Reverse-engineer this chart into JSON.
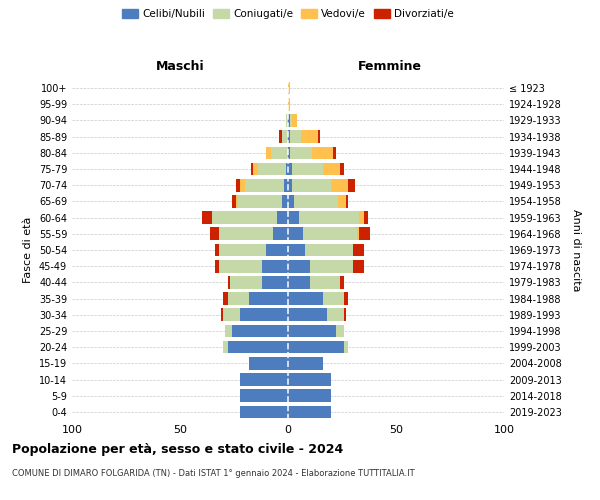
{
  "age_groups": [
    "0-4",
    "5-9",
    "10-14",
    "15-19",
    "20-24",
    "25-29",
    "30-34",
    "35-39",
    "40-44",
    "45-49",
    "50-54",
    "55-59",
    "60-64",
    "65-69",
    "70-74",
    "75-79",
    "80-84",
    "85-89",
    "90-94",
    "95-99",
    "100+"
  ],
  "birth_years": [
    "2019-2023",
    "2014-2018",
    "2009-2013",
    "2004-2008",
    "1999-2003",
    "1994-1998",
    "1989-1993",
    "1984-1988",
    "1979-1983",
    "1974-1978",
    "1969-1973",
    "1964-1968",
    "1959-1963",
    "1954-1958",
    "1949-1953",
    "1944-1948",
    "1939-1943",
    "1934-1938",
    "1929-1933",
    "1924-1928",
    "≤ 1923"
  ],
  "colors": {
    "celibi": "#4d7dbe",
    "coniugati": "#c5d9a8",
    "vedovi": "#ffc04d",
    "divorziati": "#cc2200"
  },
  "males": {
    "celibi": [
      22,
      22,
      22,
      18,
      28,
      26,
      22,
      18,
      12,
      12,
      10,
      7,
      5,
      3,
      2,
      1,
      0,
      0,
      0,
      0,
      0
    ],
    "coniugati": [
      0,
      0,
      0,
      0,
      2,
      3,
      8,
      10,
      15,
      20,
      22,
      25,
      30,
      20,
      18,
      13,
      8,
      3,
      1,
      0,
      0
    ],
    "vedovi": [
      0,
      0,
      0,
      0,
      0,
      0,
      0,
      0,
      0,
      0,
      0,
      0,
      0,
      1,
      2,
      2,
      2,
      0,
      0,
      0,
      0
    ],
    "divorziati": [
      0,
      0,
      0,
      0,
      0,
      0,
      1,
      2,
      1,
      2,
      2,
      4,
      5,
      2,
      2,
      1,
      0,
      1,
      0,
      0,
      0
    ]
  },
  "females": {
    "celibi": [
      20,
      20,
      20,
      16,
      26,
      22,
      18,
      16,
      10,
      10,
      8,
      7,
      5,
      3,
      2,
      2,
      1,
      1,
      1,
      0,
      0
    ],
    "coniugati": [
      0,
      0,
      0,
      0,
      2,
      4,
      8,
      10,
      14,
      20,
      22,
      25,
      28,
      20,
      18,
      14,
      10,
      5,
      1,
      0,
      0
    ],
    "vedovi": [
      0,
      0,
      0,
      0,
      0,
      0,
      0,
      0,
      0,
      0,
      0,
      1,
      2,
      4,
      8,
      8,
      10,
      8,
      2,
      1,
      1
    ],
    "divorziati": [
      0,
      0,
      0,
      0,
      0,
      0,
      1,
      2,
      2,
      5,
      5,
      5,
      2,
      1,
      3,
      2,
      1,
      1,
      0,
      0,
      0
    ]
  },
  "xlim": 100,
  "title": "Popolazione per età, sesso e stato civile - 2024",
  "subtitle": "COMUNE DI DIMARO FOLGARIDA (TN) - Dati ISTAT 1° gennaio 2024 - Elaborazione TUTTITALIA.IT",
  "xlabel_left": "Maschi",
  "xlabel_right": "Femmine",
  "ylabel_left": "Fasce di età",
  "ylabel_right": "Anni di nascita",
  "legend_labels": [
    "Celibi/Nubili",
    "Coniugati/e",
    "Vedovi/e",
    "Divorziati/e"
  ],
  "bg_color": "#ffffff",
  "grid_color": "#bbbbbb"
}
